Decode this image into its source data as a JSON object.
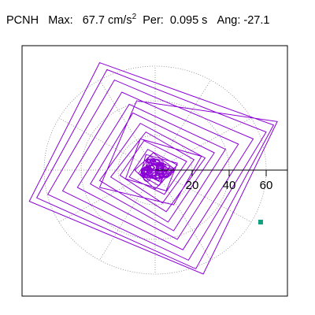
{
  "header": {
    "station": "PCNH",
    "max_label": "Max:",
    "max_value": "67.7",
    "max_unit_base": "cm/s",
    "max_unit_exp": "2",
    "per_label": "Per:",
    "per_value": "0.095 s",
    "ang_label": "Ang:",
    "ang_value": "-27.1"
  },
  "colors": {
    "trace": "#8a00d4",
    "marker": "#10a080",
    "grid": "#888888",
    "axis": "#000000"
  },
  "chart_data": {
    "type": "scatter",
    "title": "PCNH   Max:   67.7 cm/s2  Per:  0.095 s   Ang: -27.1",
    "xlabel": "",
    "ylabel": "",
    "radial_ticks": [
      "20",
      "40",
      "60"
    ],
    "radial_values": [
      20,
      40,
      60
    ],
    "grid": true,
    "grid_style": "polar dotted",
    "x_range": [
      -72,
      72
    ],
    "marker_point": {
      "x": 57,
      "y": -30
    },
    "trace": [
      [
        0,
        0
      ],
      [
        6,
        3
      ],
      [
        -4,
        6
      ],
      [
        -6,
        -2
      ],
      [
        3,
        -7
      ],
      [
        7,
        1
      ],
      [
        -2,
        6
      ],
      [
        -7,
        -1
      ],
      [
        2,
        -6
      ],
      [
        5,
        2
      ],
      [
        -3,
        4
      ],
      [
        -5,
        -3
      ],
      [
        4,
        -5
      ],
      [
        8,
        2
      ],
      [
        -3,
        8
      ],
      [
        -9,
        -2
      ],
      [
        2,
        -9
      ],
      [
        10,
        1
      ],
      [
        -1,
        10
      ],
      [
        -11,
        0
      ],
      [
        0,
        -11
      ],
      [
        12,
        3
      ],
      [
        -4,
        12
      ],
      [
        -14,
        -4
      ],
      [
        5,
        -14
      ],
      [
        17,
        5
      ],
      [
        -6,
        17
      ],
      [
        -19,
        -3
      ],
      [
        4,
        -19
      ],
      [
        21,
        6
      ],
      [
        -5,
        22
      ],
      [
        -24,
        -4
      ],
      [
        6,
        -24
      ],
      [
        27,
        7
      ],
      [
        -8,
        27
      ],
      [
        -30,
        -6
      ],
      [
        7,
        -30
      ],
      [
        32,
        10
      ],
      [
        -12,
        33
      ],
      [
        -35,
        -8
      ],
      [
        10,
        -35
      ],
      [
        38,
        12
      ],
      [
        -14,
        38
      ],
      [
        -42,
        -10
      ],
      [
        12,
        -40
      ],
      [
        45,
        15
      ],
      [
        -18,
        45
      ],
      [
        -50,
        -12
      ],
      [
        15,
        -46
      ],
      [
        53,
        18
      ],
      [
        -22,
        52
      ],
      [
        -58,
        -14
      ],
      [
        18,
        -52
      ],
      [
        60,
        22
      ],
      [
        -26,
        58
      ],
      [
        -64,
        -16
      ],
      [
        22,
        -57
      ],
      [
        64,
        26
      ],
      [
        -30,
        62
      ],
      [
        -68,
        -18
      ],
      [
        26,
        -60
      ],
      [
        66,
        28
      ],
      [
        -10,
        40
      ],
      [
        -30,
        -10
      ],
      [
        10,
        -20
      ],
      [
        25,
        8
      ],
      [
        -8,
        18
      ],
      [
        -16,
        -5
      ],
      [
        6,
        -12
      ],
      [
        12,
        4
      ],
      [
        -5,
        9
      ],
      [
        -8,
        -3
      ],
      [
        3,
        -6
      ],
      [
        6,
        2
      ],
      [
        -2,
        4
      ],
      [
        -3,
        -1
      ],
      [
        1,
        -2
      ],
      [
        2,
        1
      ],
      [
        0,
        0
      ]
    ]
  }
}
